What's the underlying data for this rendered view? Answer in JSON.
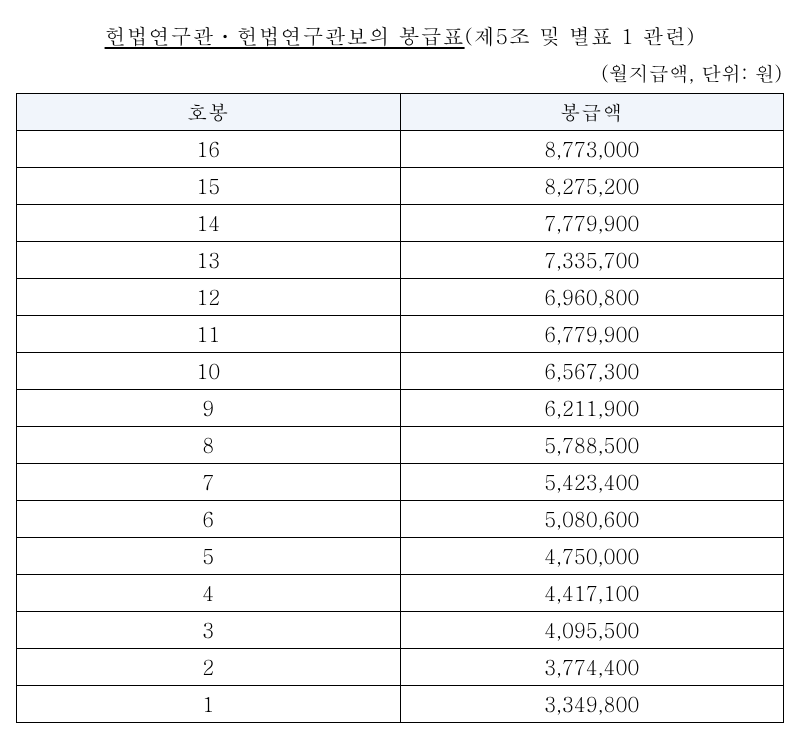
{
  "title_underlined": "헌법연구관ㆍ헌법연구관보의 봉급표",
  "title_suffix": "(제5조 및 별표 1 관련)",
  "subtitle": "(월지급액, 단위: 원)",
  "table": {
    "columns": [
      "호봉",
      "봉급액"
    ],
    "header_bg": "#f1f5fb",
    "border_color": "#000000",
    "rows": [
      [
        "16",
        "8,773,000"
      ],
      [
        "15",
        "8,275,200"
      ],
      [
        "14",
        "7,779,900"
      ],
      [
        "13",
        "7,335,700"
      ],
      [
        "12",
        "6,960,800"
      ],
      [
        "11",
        "6,779,900"
      ],
      [
        "10",
        "6,567,300"
      ],
      [
        "9",
        "6,211,900"
      ],
      [
        "8",
        "5,788,500"
      ],
      [
        "7",
        "5,423,400"
      ],
      [
        "6",
        "5,080,600"
      ],
      [
        "5",
        "4,750,000"
      ],
      [
        "4",
        "4,417,100"
      ],
      [
        "3",
        "4,095,500"
      ],
      [
        "2",
        "3,774,400"
      ],
      [
        "1",
        "3,349,800"
      ]
    ]
  }
}
